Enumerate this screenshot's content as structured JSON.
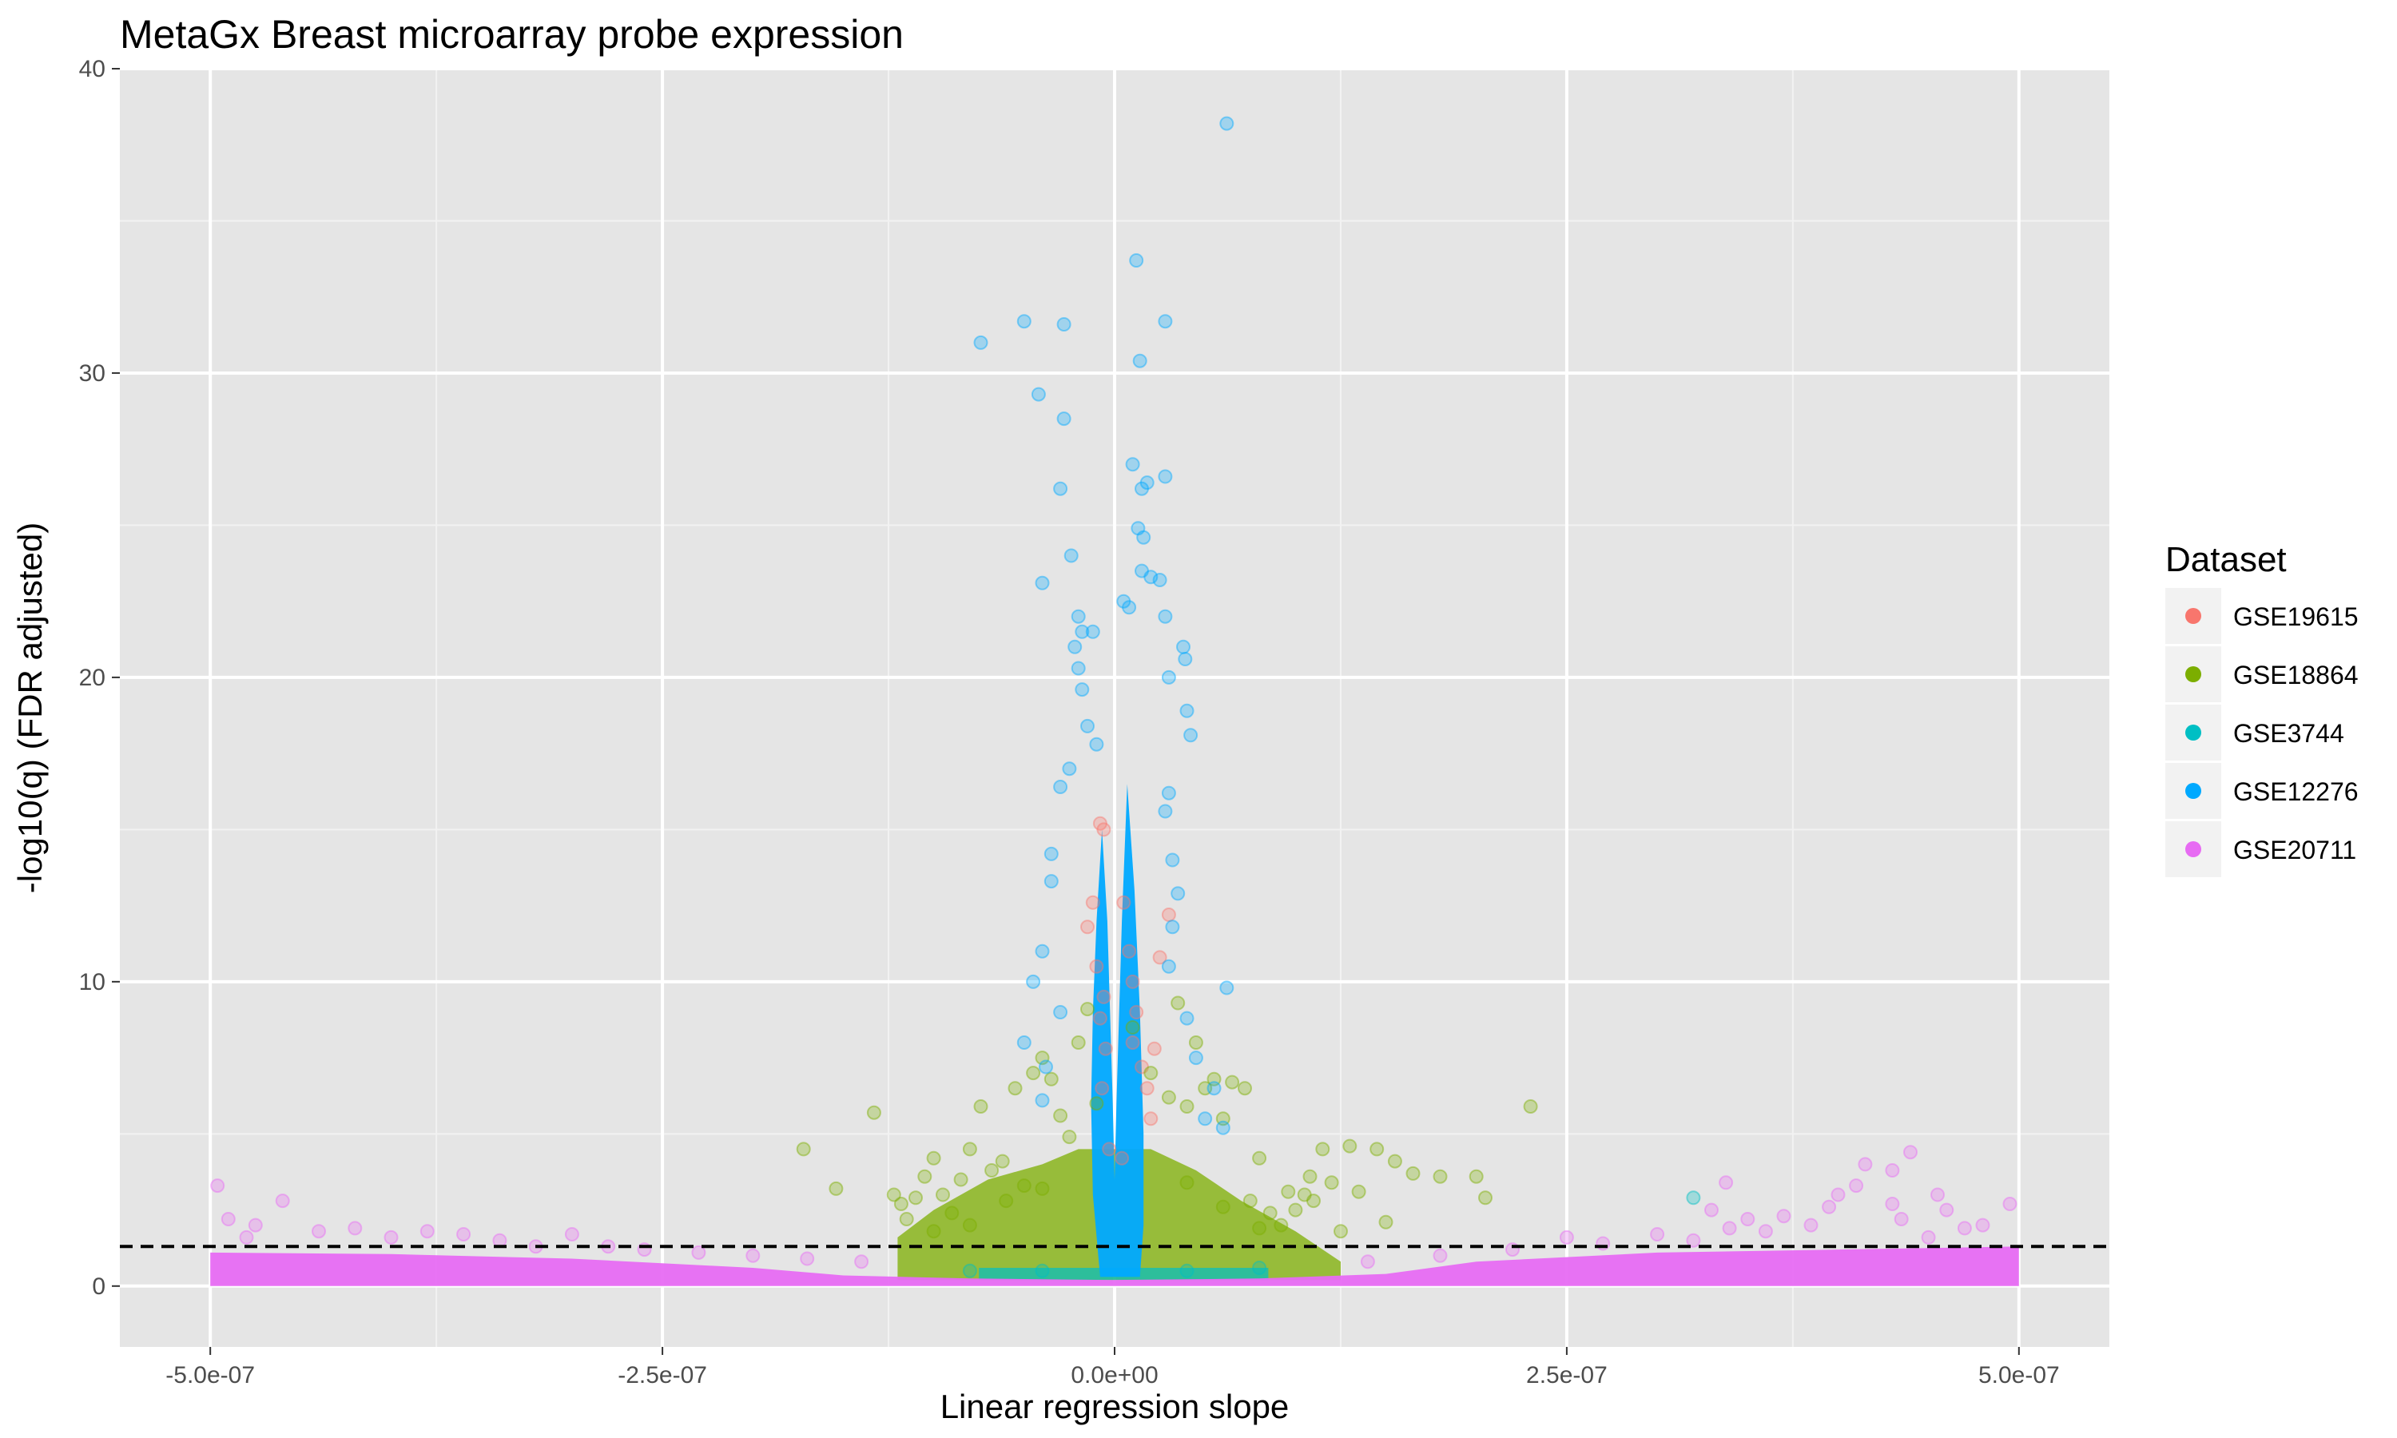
{
  "chart_data": {
    "type": "scatter",
    "title": "MetaGx Breast microarray probe expression",
    "xlabel": "Linear regression slope",
    "ylabel": "-log10(q) (FDR adjusted)",
    "xlim": [
      -5.5e-07,
      5.5e-07
    ],
    "ylim": [
      -2,
      40
    ],
    "x_ticks": [
      -5e-07,
      -2.5e-07,
      0,
      2.5e-07,
      5e-07
    ],
    "x_tick_labels": [
      "-5.0e-07",
      "-2.5e-07",
      "0.0e+00",
      "2.5e-07",
      "5.0e-07"
    ],
    "y_ticks": [
      0,
      10,
      20,
      30,
      40
    ],
    "y_tick_labels": [
      "0",
      "10",
      "20",
      "30",
      "40"
    ],
    "grid": true,
    "threshold_line": {
      "y": 1.3,
      "style": "dashed"
    },
    "legend": {
      "title": "Dataset",
      "placement": "right"
    },
    "series": [
      {
        "name": "GSE19615",
        "color": "#F8766D",
        "points": [
          [
            -8e-09,
            15.2
          ],
          [
            -6e-09,
            15.0
          ],
          [
            -1.2e-08,
            12.6
          ],
          [
            -1.5e-08,
            11.8
          ],
          [
            -1e-08,
            10.5
          ],
          [
            -6e-09,
            9.5
          ],
          [
            -8e-09,
            8.8
          ],
          [
            -5e-09,
            7.8
          ],
          [
            -7e-09,
            6.5
          ],
          [
            5e-09,
            12.6
          ],
          [
            8e-09,
            11.0
          ],
          [
            1e-08,
            10.0
          ],
          [
            1.2e-08,
            9.0
          ],
          [
            1e-08,
            8.0
          ],
          [
            1.5e-08,
            7.2
          ],
          [
            1.8e-08,
            6.5
          ],
          [
            2e-08,
            5.5
          ],
          [
            3e-08,
            12.2
          ],
          [
            2.5e-08,
            10.8
          ],
          [
            2.2e-08,
            7.8
          ],
          [
            -3e-09,
            4.5
          ],
          [
            4e-09,
            4.2
          ]
        ]
      },
      {
        "name": "GSE18864",
        "color": "#7CAE00",
        "points": [
          [
            -1.72e-07,
            4.5
          ],
          [
            -1.54e-07,
            3.2
          ],
          [
            -1.33e-07,
            5.7
          ],
          [
            -1.22e-07,
            3.0
          ],
          [
            -1.18e-07,
            2.7
          ],
          [
            -1.15e-07,
            2.2
          ],
          [
            -1.1e-07,
            2.9
          ],
          [
            -1.05e-07,
            3.6
          ],
          [
            -1e-07,
            4.2
          ],
          [
            -9.5e-08,
            3.0
          ],
          [
            -9e-08,
            2.4
          ],
          [
            -8.5e-08,
            3.5
          ],
          [
            -8e-08,
            4.5
          ],
          [
            -7.4e-08,
            5.9
          ],
          [
            -6.8e-08,
            3.8
          ],
          [
            -6.2e-08,
            4.1
          ],
          [
            -5.5e-08,
            6.5
          ],
          [
            -5e-08,
            3.3
          ],
          [
            -4.5e-08,
            7.0
          ],
          [
            -4e-08,
            7.5
          ],
          [
            -3.5e-08,
            6.8
          ],
          [
            -3e-08,
            5.6
          ],
          [
            -2.5e-08,
            4.9
          ],
          [
            -2e-08,
            8.0
          ],
          [
            -1.5e-08,
            9.1
          ],
          [
            -1e-08,
            6.0
          ],
          [
            1e-08,
            8.5
          ],
          [
            2e-08,
            7.0
          ],
          [
            3e-08,
            6.2
          ],
          [
            3.5e-08,
            9.3
          ],
          [
            4e-08,
            5.9
          ],
          [
            4.5e-08,
            8.0
          ],
          [
            5e-08,
            6.5
          ],
          [
            5.5e-08,
            6.8
          ],
          [
            6e-08,
            5.5
          ],
          [
            6.5e-08,
            6.7
          ],
          [
            7.2e-08,
            6.5
          ],
          [
            7.5e-08,
            2.8
          ],
          [
            8e-08,
            4.2
          ],
          [
            8.6e-08,
            2.4
          ],
          [
            9.2e-08,
            2.0
          ],
          [
            9.6e-08,
            3.1
          ],
          [
            1e-07,
            2.5
          ],
          [
            1.05e-07,
            3.0
          ],
          [
            1.08e-07,
            3.6
          ],
          [
            1.1e-07,
            2.8
          ],
          [
            1.15e-07,
            4.5
          ],
          [
            1.2e-07,
            3.4
          ],
          [
            1.25e-07,
            1.8
          ],
          [
            1.3e-07,
            4.6
          ],
          [
            1.35e-07,
            3.1
          ],
          [
            1.45e-07,
            4.5
          ],
          [
            1.5e-07,
            2.1
          ],
          [
            1.55e-07,
            4.1
          ],
          [
            1.65e-07,
            3.7
          ],
          [
            1.8e-07,
            3.6
          ],
          [
            2e-07,
            3.6
          ],
          [
            2.05e-07,
            2.9
          ],
          [
            2.3e-07,
            5.9
          ],
          [
            -1e-07,
            1.8
          ],
          [
            -8e-08,
            2.0
          ],
          [
            -6e-08,
            2.8
          ],
          [
            -4e-08,
            3.2
          ],
          [
            4e-08,
            3.4
          ],
          [
            6e-08,
            2.6
          ],
          [
            8e-08,
            1.9
          ]
        ]
      },
      {
        "name": "GSE3744",
        "color": "#00BFC4",
        "points": [
          [
            3.2e-07,
            2.9
          ],
          [
            4e-08,
            0.5
          ],
          [
            -4e-08,
            0.5
          ],
          [
            8e-08,
            0.6
          ],
          [
            -8e-08,
            0.5
          ]
        ]
      },
      {
        "name": "GSE12276",
        "color": "#00A9FF",
        "points": [
          [
            6.2e-08,
            38.2
          ],
          [
            1.2e-08,
            33.7
          ],
          [
            2.8e-08,
            31.7
          ],
          [
            1.4e-08,
            30.4
          ],
          [
            -5e-08,
            31.7
          ],
          [
            -2.8e-08,
            31.6
          ],
          [
            -7.4e-08,
            31.0
          ],
          [
            -4.2e-08,
            29.3
          ],
          [
            -2.8e-08,
            28.5
          ],
          [
            -3e-08,
            26.2
          ],
          [
            1e-08,
            27.0
          ],
          [
            1.8e-08,
            26.4
          ],
          [
            2.8e-08,
            26.6
          ],
          [
            1.5e-08,
            26.2
          ],
          [
            -2.4e-08,
            24.0
          ],
          [
            -4e-08,
            23.1
          ],
          [
            1.3e-08,
            24.9
          ],
          [
            1.6e-08,
            24.6
          ],
          [
            1.5e-08,
            23.5
          ],
          [
            2e-08,
            23.3
          ],
          [
            2.5e-08,
            23.2
          ],
          [
            2.8e-08,
            22.0
          ],
          [
            8e-09,
            22.3
          ],
          [
            5e-09,
            22.5
          ],
          [
            -2e-08,
            22.0
          ],
          [
            -1.8e-08,
            21.5
          ],
          [
            -1.2e-08,
            21.5
          ],
          [
            -2.2e-08,
            21.0
          ],
          [
            3.8e-08,
            21.0
          ],
          [
            3.9e-08,
            20.6
          ],
          [
            3e-08,
            20.0
          ],
          [
            -2e-08,
            20.3
          ],
          [
            -1.8e-08,
            19.6
          ],
          [
            4e-08,
            18.9
          ],
          [
            -1.5e-08,
            18.4
          ],
          [
            -1e-08,
            17.8
          ],
          [
            4.2e-08,
            18.1
          ],
          [
            -2.5e-08,
            17.0
          ],
          [
            -3e-08,
            16.4
          ],
          [
            3e-08,
            16.2
          ],
          [
            2.8e-08,
            15.6
          ],
          [
            -3.5e-08,
            14.2
          ],
          [
            3.2e-08,
            14.0
          ],
          [
            -3.5e-08,
            13.3
          ],
          [
            3.5e-08,
            12.9
          ],
          [
            3.2e-08,
            11.8
          ],
          [
            -4e-08,
            11.0
          ],
          [
            -4.5e-08,
            10.0
          ],
          [
            3e-08,
            10.5
          ],
          [
            6.2e-08,
            9.8
          ],
          [
            -3e-08,
            9.0
          ],
          [
            4e-08,
            8.8
          ],
          [
            -5e-08,
            8.0
          ],
          [
            4.5e-08,
            7.5
          ],
          [
            -3.8e-08,
            7.2
          ],
          [
            5.5e-08,
            6.5
          ],
          [
            -4e-08,
            6.1
          ],
          [
            5e-08,
            5.5
          ],
          [
            6e-08,
            5.2
          ]
        ]
      },
      {
        "name": "GSE20711",
        "color": "#E76BF3",
        "points": [
          [
            -4.96e-07,
            3.3
          ],
          [
            -4.6e-07,
            2.8
          ],
          [
            -4.9e-07,
            2.2
          ],
          [
            -4.75e-07,
            2.0
          ],
          [
            -4.8e-07,
            1.6
          ],
          [
            -4.4e-07,
            1.8
          ],
          [
            -4.2e-07,
            1.9
          ],
          [
            -4e-07,
            1.6
          ],
          [
            -3.8e-07,
            1.8
          ],
          [
            -3.6e-07,
            1.7
          ],
          [
            -3.4e-07,
            1.5
          ],
          [
            -3.2e-07,
            1.3
          ],
          [
            -3e-07,
            1.7
          ],
          [
            -2.8e-07,
            1.3
          ],
          [
            -2.6e-07,
            1.2
          ],
          [
            -2.3e-07,
            1.1
          ],
          [
            -2e-07,
            1.0
          ],
          [
            -1.7e-07,
            0.9
          ],
          [
            -1.4e-07,
            0.8
          ],
          [
            1.4e-07,
            0.8
          ],
          [
            1.8e-07,
            1.0
          ],
          [
            2.2e-07,
            1.2
          ],
          [
            2.5e-07,
            1.6
          ],
          [
            2.7e-07,
            1.4
          ],
          [
            3e-07,
            1.7
          ],
          [
            3.2e-07,
            1.5
          ],
          [
            3.38e-07,
            3.4
          ],
          [
            3.3e-07,
            2.5
          ],
          [
            3.5e-07,
            2.2
          ],
          [
            3.6e-07,
            1.8
          ],
          [
            3.7e-07,
            2.3
          ],
          [
            3.85e-07,
            2.0
          ],
          [
            3.95e-07,
            2.6
          ],
          [
            4e-07,
            3.0
          ],
          [
            4.1e-07,
            3.3
          ],
          [
            4.15e-07,
            4.0
          ],
          [
            4.3e-07,
            3.8
          ],
          [
            4.4e-07,
            4.4
          ],
          [
            4.3e-07,
            2.7
          ],
          [
            4.35e-07,
            2.2
          ],
          [
            4.55e-07,
            3.0
          ],
          [
            4.6e-07,
            2.5
          ],
          [
            4.7e-07,
            1.9
          ],
          [
            4.8e-07,
            2.0
          ],
          [
            4.95e-07,
            2.7
          ],
          [
            4.5e-07,
            1.6
          ],
          [
            3.4e-07,
            1.9
          ]
        ]
      }
    ]
  }
}
